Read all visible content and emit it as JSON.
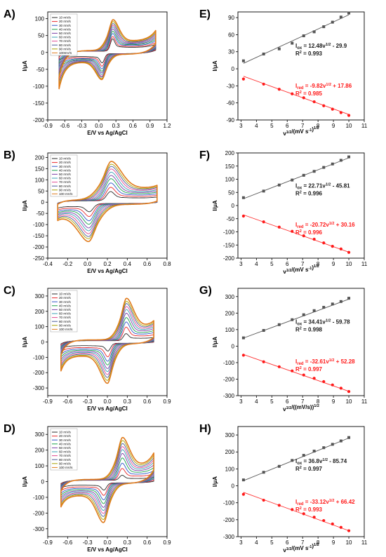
{
  "figure": {
    "colors": {
      "cv_series": [
        "#2b2b2b",
        "#e8272a",
        "#2f55c8",
        "#19a24b",
        "#7a3ea8",
        "#3aa0b5",
        "#e04a92",
        "#4a5a9a",
        "#a7a000",
        "#e07b1c"
      ],
      "oxidation": "#555555",
      "reduction": "#ff1a1a",
      "fit_ox": "#555555",
      "fit_red": "#ff3030"
    }
  },
  "chart_data": [
    {
      "id": "A",
      "label": "A)",
      "type": "line",
      "xlabel": "E/V vs Ag/AgCl",
      "ylabel": "I/μA",
      "xlim": [
        -0.9,
        1.2
      ],
      "ylim": [
        -200,
        120
      ],
      "xticks": [
        "-0.9",
        "-0.6",
        "-0.3",
        "0.0",
        "0.3",
        "0.6",
        "0.9",
        "1.2"
      ],
      "yticks": [
        "-200",
        "-150",
        "-100",
        "-50",
        "0",
        "50",
        "100"
      ],
      "legend": [
        "10 mV/s",
        "20 mV/s",
        "30 mV/s",
        "40 mV/s",
        "50 mV/s",
        "60 mV/s",
        "70 mV/s",
        "80 mV/s",
        "90 mV/s",
        "100mV/s"
      ],
      "legend_position": "top-left",
      "cv": {
        "e_start": -0.7,
        "e_end": 1.0,
        "epa": 0.24,
        "epc": 0.06,
        "ipa": [
          40,
          47,
          56,
          63,
          70,
          76,
          81,
          86,
          92,
          98
        ],
        "ipc": [
          -30,
          -40,
          -48,
          -55,
          -60,
          -65,
          -70,
          -73,
          -77,
          -80
        ],
        "dl": 6,
        "tail_low": -20,
        "tail_low_max": -160,
        "tail_high": 20,
        "tail_high_max": 65
      }
    },
    {
      "id": "B",
      "label": "B)",
      "type": "line",
      "xlabel": "E/V vs Ag/AgCl",
      "ylabel": "I/μA",
      "xlim": [
        -0.4,
        0.8
      ],
      "ylim": [
        -250,
        220
      ],
      "xticks": [
        "-0.4",
        "-0.2",
        "0.0",
        "0.2",
        "0.4",
        "0.6",
        "0.8"
      ],
      "yticks": [
        "-250",
        "-200",
        "-150",
        "-100",
        "-50",
        "0",
        "50",
        "100",
        "150",
        "200"
      ],
      "legend": [
        "10 mV/s",
        "20 mV/s",
        "30 mV/s",
        "40 mV/s",
        "50 mV/s",
        "60 mV/s",
        "70 mV/s",
        "80 mV/s",
        "90 mV/s",
        "100 mV/s"
      ],
      "legend_position": "top-left",
      "cv": {
        "e_start": -0.3,
        "e_end": 0.7,
        "epa": 0.23,
        "epc": 0.02,
        "ipa": [
          45,
          65,
          85,
          105,
          120,
          135,
          150,
          162,
          172,
          185
        ],
        "ipc": [
          -40,
          -62,
          -82,
          -98,
          -115,
          -128,
          -142,
          -155,
          -165,
          -178
        ],
        "dl": 10,
        "tail_low": -20,
        "tail_low_max": -40,
        "tail_high": 10,
        "tail_high_max": 30
      }
    },
    {
      "id": "C",
      "label": "C)",
      "type": "line",
      "xlabel": "E/V vs Ag/AgCl",
      "ylabel": "I/μA",
      "xlim": [
        -0.9,
        0.9
      ],
      "ylim": [
        -350,
        350
      ],
      "xticks": [
        "-0.9",
        "-0.6",
        "-0.3",
        "0.0",
        "0.3",
        "0.6",
        "0.9"
      ],
      "yticks": [
        "-300",
        "-200",
        "-100",
        "0",
        "100",
        "200",
        "300"
      ],
      "legend": [
        "10 mV/s",
        "20 mV/s",
        "30 mV/s",
        "40 mV/s",
        "50 mV/s",
        "60 mV/s",
        "70 mV/s",
        "80 mV/s",
        "90 mV/s",
        "100 mV/s"
      ],
      "legend_position": "top-left",
      "cv": {
        "e_start": -0.7,
        "e_end": 0.7,
        "epa": 0.28,
        "epc": 0.01,
        "ipa": [
          50,
          95,
          130,
          160,
          190,
          215,
          235,
          255,
          270,
          290
        ],
        "ipc": [
          -55,
          -95,
          -125,
          -150,
          -175,
          -195,
          -215,
          -235,
          -255,
          -275
        ],
        "dl": 14,
        "tail_low": -40,
        "tail_low_max": -200,
        "tail_high": 15,
        "tail_high_max": 90
      }
    },
    {
      "id": "D",
      "label": "D)",
      "type": "line",
      "xlabel": "E/V vs Ag/AgCl",
      "ylabel": "I/μA",
      "xlim": [
        -0.9,
        0.9
      ],
      "ylim": [
        -350,
        350
      ],
      "xticks": [
        "-0.9",
        "-0.6",
        "-0.3",
        "0.0",
        "0.3",
        "0.6",
        "0.9"
      ],
      "yticks": [
        "-300",
        "-200",
        "-100",
        "0",
        "100",
        "200",
        "300"
      ],
      "legend": [
        "10 mV/s",
        "20 mV/s",
        "30 mV/s",
        "40 mV/s",
        "50 mV/s",
        "60 mV/s",
        "70 mV/s",
        "80 mV/s",
        "90 mV/s",
        "100 mV/s"
      ],
      "legend_position": "top-left",
      "cv": {
        "e_start": -0.7,
        "e_end": 0.7,
        "epa": 0.22,
        "epc": -0.05,
        "ipa": [
          35,
          80,
          115,
          150,
          180,
          205,
          225,
          245,
          265,
          285
        ],
        "ipc": [
          -50,
          -85,
          -115,
          -140,
          -165,
          -185,
          -205,
          -225,
          -245,
          -265
        ],
        "dl": 14,
        "tail_low": -40,
        "tail_low_max": -150,
        "tail_high": 20,
        "tail_high_max": 180
      }
    },
    {
      "id": "E",
      "label": "E)",
      "type": "scatter",
      "xlabel": "v1/2/(mV s-1)1/2",
      "ylabel": "I/μA",
      "xlim": [
        2.8,
        11
      ],
      "ylim": [
        -90,
        100
      ],
      "xticks": [
        "3",
        "4",
        "5",
        "6",
        "7",
        "8",
        "9",
        "10",
        "11"
      ],
      "yticks": [
        "-90",
        "-60",
        "-30",
        "0",
        "30",
        "60",
        "90"
      ],
      "x": [
        3.16,
        4.47,
        5.48,
        6.32,
        7.07,
        7.75,
        8.37,
        8.94,
        9.49,
        10.0
      ],
      "series": [
        {
          "values": [
            14,
            26,
            35,
            45,
            58,
            65,
            74,
            82,
            91,
            98
          ],
          "fit": {
            "slope": 12.48,
            "intercept": -29.9
          }
        },
        {
          "values": [
            -18,
            -27,
            -36,
            -44,
            -51,
            -58,
            -65,
            -71,
            -77,
            -82
          ],
          "fit": {
            "slope": -9.82,
            "intercept": 17.86
          }
        }
      ],
      "eq_ox": {
        "main": "I",
        "sub": "ox",
        "rest": " = 12.48v",
        "sup": "1/2",
        "tail": " - 29.9",
        "r2": "= 0.993"
      },
      "eq_red": {
        "main": "I",
        "sub": "red",
        "rest": " = -9.82v",
        "sup": "1/2",
        "tail": " + 17.86",
        "r2": "= 0.985"
      }
    },
    {
      "id": "F",
      "label": "F)",
      "type": "scatter",
      "xlabel": "v1/2/(mV s-1)1/2",
      "ylabel": "I/μA",
      "xlim": [
        2.8,
        11
      ],
      "ylim": [
        -200,
        200
      ],
      "xticks": [
        "3",
        "4",
        "5",
        "6",
        "7",
        "8",
        "9",
        "10",
        "11"
      ],
      "yticks": [
        "-200",
        "-150",
        "-100",
        "-50",
        "0",
        "50",
        "100",
        "150",
        "200"
      ],
      "x": [
        3.16,
        4.47,
        5.48,
        6.32,
        7.07,
        7.75,
        8.37,
        8.94,
        9.49,
        10.0
      ],
      "series": [
        {
          "values": [
            30,
            55,
            78,
            97,
            115,
            130,
            145,
            158,
            172,
            185
          ],
          "fit": {
            "slope": 22.71,
            "intercept": -45.81
          }
        },
        {
          "values": [
            -40,
            -62,
            -82,
            -98,
            -115,
            -128,
            -142,
            -155,
            -165,
            -178
          ],
          "fit": {
            "slope": -20.72,
            "intercept": 30.16
          }
        }
      ],
      "eq_ox": {
        "main": "I",
        "sub": "ox",
        "rest": " = 22.71v",
        "sup": "1/2",
        "tail": " - 45.81",
        "r2": "= 0.996"
      },
      "eq_red": {
        "main": "I",
        "sub": "red",
        "rest": " = -20.72v",
        "sup": "1/2",
        "tail": " + 30.16",
        "r2": "= 0.996"
      }
    },
    {
      "id": "G",
      "label": "G)",
      "type": "scatter",
      "xlabel": "v1/2/((mV/s))1/2",
      "ylabel": "I/μA",
      "xlim": [
        2.8,
        11
      ],
      "ylim": [
        -300,
        350
      ],
      "xticks": [
        "3",
        "4",
        "5",
        "6",
        "7",
        "8",
        "9",
        "10",
        "11"
      ],
      "yticks": [
        "-300",
        "-200",
        "-100",
        "0",
        "100",
        "200",
        "300"
      ],
      "x": [
        3.16,
        4.47,
        5.48,
        6.32,
        7.07,
        7.75,
        8.37,
        8.94,
        9.49,
        10.0
      ],
      "series": [
        {
          "values": [
            50,
            95,
            130,
            160,
            190,
            215,
            235,
            255,
            270,
            290
          ],
          "fit": {
            "slope": 34.41,
            "intercept": -59.78
          }
        },
        {
          "values": [
            -55,
            -95,
            -125,
            -150,
            -175,
            -195,
            -215,
            -235,
            -255,
            -275
          ],
          "fit": {
            "slope": -32.61,
            "intercept": 52.28
          }
        }
      ],
      "eq_ox": {
        "main": "I",
        "sub": "ox",
        "rest": " = 34.41v",
        "sup": "1/2",
        "tail": " - 59.78",
        "r2": "= 0.998"
      },
      "eq_red": {
        "main": "I",
        "sub": "red",
        "rest": " = -32.61v",
        "sup": "1/2",
        "tail": " + 52.28",
        "r2": "= 0.997"
      }
    },
    {
      "id": "H",
      "label": "H)",
      "type": "scatter",
      "xlabel": "v1/2/(mV s-1)1/2",
      "ylabel": "I/μA",
      "xlim": [
        2.8,
        11
      ],
      "ylim": [
        -300,
        350
      ],
      "xticks": [
        "3",
        "4",
        "5",
        "6",
        "7",
        "8",
        "9",
        "10",
        "11"
      ],
      "yticks": [
        "-300",
        "-200",
        "-100",
        "0",
        "100",
        "200",
        "300"
      ],
      "x": [
        3.16,
        4.47,
        5.48,
        6.32,
        7.07,
        7.75,
        8.37,
        8.94,
        9.49,
        10.0
      ],
      "series": [
        {
          "values": [
            35,
            80,
            115,
            150,
            180,
            205,
            225,
            245,
            265,
            285
          ],
          "fit": {
            "slope": 36.8,
            "intercept": -85.74
          }
        },
        {
          "values": [
            -50,
            -85,
            -115,
            -140,
            -165,
            -185,
            -205,
            -225,
            -245,
            -265
          ],
          "fit": {
            "slope": -33.12,
            "intercept": 66.42
          }
        }
      ],
      "eq_ox": {
        "main": "I",
        "sub": "ox",
        "rest": " = 36.8v",
        "sup": "1/2",
        "tail": " - 85.74",
        "r2": "= 0.997"
      },
      "eq_red": {
        "main": "I",
        "sub": "red",
        "rest": " = -33.12v",
        "sup": "1/2",
        "tail": " + 66.42",
        "r2": "= 0.993"
      }
    }
  ]
}
